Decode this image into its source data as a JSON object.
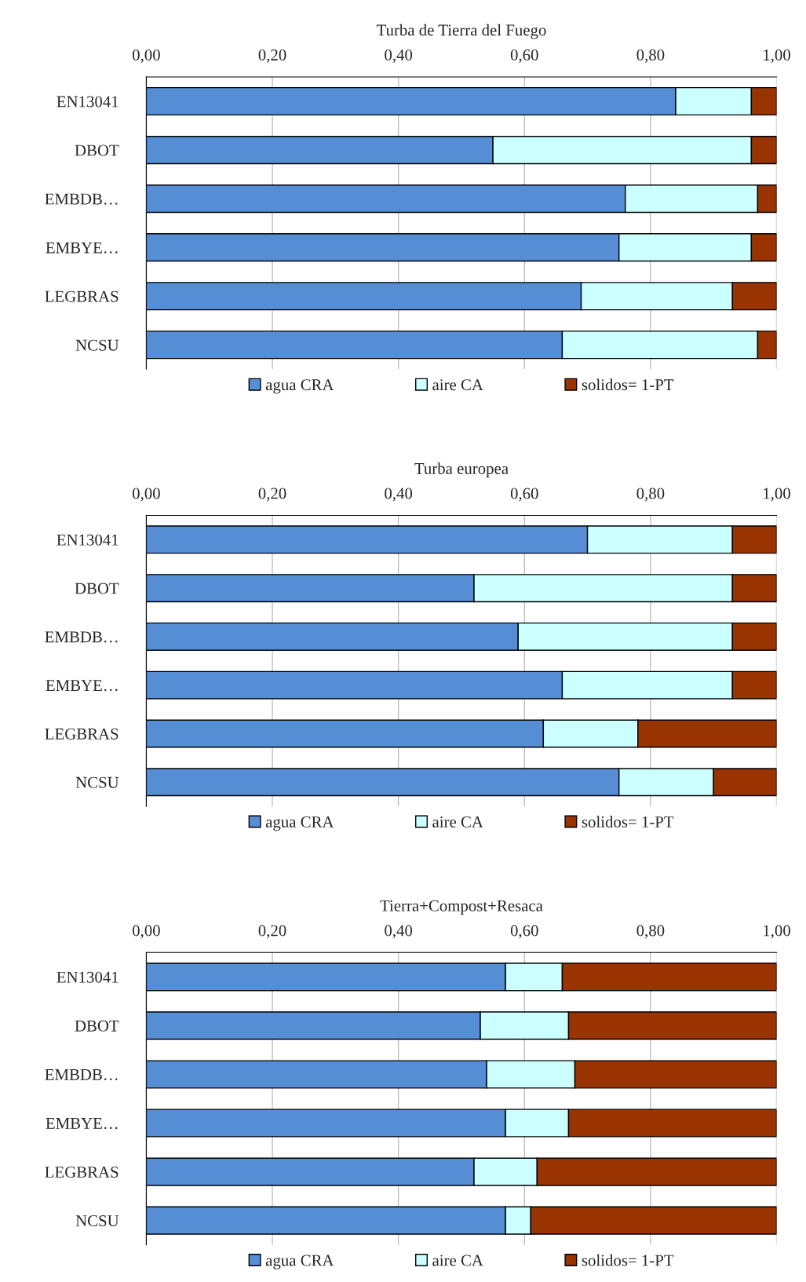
{
  "chart_data": [
    {
      "type": "bar",
      "orientation": "horizontal",
      "stacked": true,
      "title": "Turba de Tierra del Fuego",
      "categories": [
        "EN13041",
        "DBOT",
        "EMBDB…",
        "EMBYE…",
        "LEGBRAS",
        "NCSU"
      ],
      "series": [
        {
          "name": "agua CRA",
          "color": "#558ed5",
          "values": [
            0.84,
            0.55,
            0.76,
            0.75,
            0.69,
            0.66
          ]
        },
        {
          "name": "aire CA",
          "color": "#ccffff",
          "values": [
            0.12,
            0.41,
            0.21,
            0.21,
            0.24,
            0.31
          ]
        },
        {
          "name": "solidos= 1-PT",
          "color": "#993300",
          "values": [
            0.04,
            0.04,
            0.03,
            0.04,
            0.07,
            0.03
          ]
        }
      ],
      "xlim": [
        0,
        1
      ],
      "xticks": [
        {
          "value": 0,
          "label": "0,00"
        },
        {
          "value": 0.2,
          "label": "0,20"
        },
        {
          "value": 0.4,
          "label": "0,40"
        },
        {
          "value": 0.6,
          "label": "0,60"
        },
        {
          "value": 0.8,
          "label": "0,80"
        },
        {
          "value": 1,
          "label": "1,00"
        }
      ],
      "grid": "x",
      "legend": "bottom"
    },
    {
      "type": "bar",
      "orientation": "horizontal",
      "stacked": true,
      "title": "Turba europea",
      "categories": [
        "EN13041",
        "DBOT",
        "EMBDB…",
        "EMBYE…",
        "LEGBRAS",
        "NCSU"
      ],
      "series": [
        {
          "name": "agua CRA",
          "color": "#558ed5",
          "values": [
            0.7,
            0.52,
            0.59,
            0.66,
            0.63,
            0.75
          ]
        },
        {
          "name": "aire CA",
          "color": "#ccffff",
          "values": [
            0.23,
            0.41,
            0.34,
            0.27,
            0.15,
            0.15
          ]
        },
        {
          "name": "solidos= 1-PT",
          "color": "#993300",
          "values": [
            0.07,
            0.07,
            0.07,
            0.07,
            0.22,
            0.1
          ]
        }
      ],
      "xlim": [
        0,
        1
      ],
      "xticks": [
        {
          "value": 0,
          "label": "0,00"
        },
        {
          "value": 0.2,
          "label": "0,20"
        },
        {
          "value": 0.4,
          "label": "0,40"
        },
        {
          "value": 0.6,
          "label": "0,60"
        },
        {
          "value": 0.8,
          "label": "0,80"
        },
        {
          "value": 1,
          "label": "1,00"
        }
      ],
      "grid": "x",
      "legend": "bottom"
    },
    {
      "type": "bar",
      "orientation": "horizontal",
      "stacked": true,
      "title": "Tierra+Compost+Resaca",
      "categories": [
        "EN13041",
        "DBOT",
        "EMBDB…",
        "EMBYE…",
        "LEGBRAS",
        "NCSU"
      ],
      "series": [
        {
          "name": "agua CRA",
          "color": "#558ed5",
          "values": [
            0.57,
            0.53,
            0.54,
            0.57,
            0.52,
            0.57
          ]
        },
        {
          "name": "aire CA",
          "color": "#ccffff",
          "values": [
            0.09,
            0.14,
            0.14,
            0.1,
            0.1,
            0.04
          ]
        },
        {
          "name": "solidos= 1-PT",
          "color": "#993300",
          "values": [
            0.34,
            0.33,
            0.32,
            0.33,
            0.38,
            0.39
          ]
        }
      ],
      "xlim": [
        0,
        1
      ],
      "xticks": [
        {
          "value": 0,
          "label": "0,00"
        },
        {
          "value": 0.2,
          "label": "0,20"
        },
        {
          "value": 0.4,
          "label": "0,40"
        },
        {
          "value": 0.6,
          "label": "0,60"
        },
        {
          "value": 0.8,
          "label": "0,80"
        },
        {
          "value": 1,
          "label": "1,00"
        }
      ],
      "grid": "x",
      "legend": "bottom"
    }
  ]
}
